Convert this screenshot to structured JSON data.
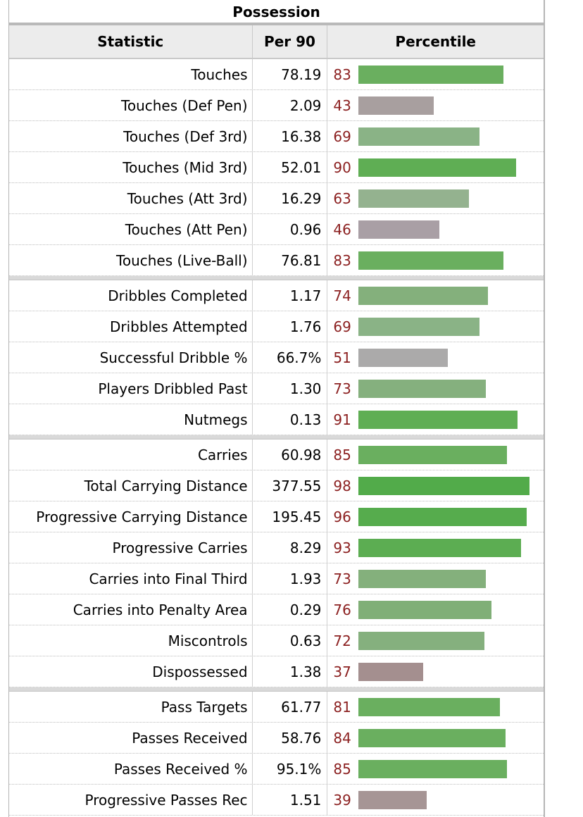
{
  "table": {
    "caption": "Possession",
    "headers": [
      "Statistic",
      "Per 90",
      "Percentile"
    ],
    "groups": [
      [
        {
          "stat": "Touches",
          "per90": "78.19",
          "pct": 83,
          "color": "#6aaf5f"
        },
        {
          "stat": "Touches (Def Pen)",
          "per90": "2.09",
          "pct": 43,
          "color": "#a89f9f"
        },
        {
          "stat": "Touches (Def 3rd)",
          "per90": "16.38",
          "pct": 69,
          "color": "#8ab386"
        },
        {
          "stat": "Touches (Mid 3rd)",
          "per90": "52.01",
          "pct": 90,
          "color": "#5fae54"
        },
        {
          "stat": "Touches (Att 3rd)",
          "per90": "16.29",
          "pct": 63,
          "color": "#94b28f"
        },
        {
          "stat": "Touches (Att Pen)",
          "per90": "0.96",
          "pct": 46,
          "color": "#a99fa5"
        },
        {
          "stat": "Touches (Live-Ball)",
          "per90": "76.81",
          "pct": 83,
          "color": "#6aaf5f"
        }
      ],
      [
        {
          "stat": "Dribbles Completed",
          "per90": "1.17",
          "pct": 74,
          "color": "#84b07c"
        },
        {
          "stat": "Dribbles Attempted",
          "per90": "1.76",
          "pct": 69,
          "color": "#8ab386"
        },
        {
          "stat": "Successful Dribble %",
          "per90": "66.7%",
          "pct": 51,
          "color": "#abaaaa"
        },
        {
          "stat": "Players Dribbled Past",
          "per90": "1.30",
          "pct": 73,
          "color": "#85b07e"
        },
        {
          "stat": "Nutmegs",
          "per90": "0.13",
          "pct": 91,
          "color": "#5fae54"
        }
      ],
      [
        {
          "stat": "Carries",
          "per90": "60.98",
          "pct": 85,
          "color": "#6aaf5f"
        },
        {
          "stat": "Total Carrying Distance",
          "per90": "377.55",
          "pct": 98,
          "color": "#52ab4a"
        },
        {
          "stat": "Progressive Carrying Distance",
          "per90": "195.45",
          "pct": 96,
          "color": "#56ac4d"
        },
        {
          "stat": "Progressive Carries",
          "per90": "8.29",
          "pct": 93,
          "color": "#5cad52"
        },
        {
          "stat": "Carries into Final Third",
          "per90": "1.93",
          "pct": 73,
          "color": "#84b07c"
        },
        {
          "stat": "Carries into Penalty Area",
          "per90": "0.29",
          "pct": 76,
          "color": "#80af77"
        },
        {
          "stat": "Miscontrols",
          "per90": "0.63",
          "pct": 72,
          "color": "#85b07e"
        },
        {
          "stat": "Dispossessed",
          "per90": "1.38",
          "pct": 37,
          "color": "#a48f8f"
        }
      ],
      [
        {
          "stat": "Pass Targets",
          "per90": "61.77",
          "pct": 81,
          "color": "#6aaf5f"
        },
        {
          "stat": "Passes Received",
          "per90": "58.76",
          "pct": 84,
          "color": "#6aaf5f"
        },
        {
          "stat": "Passes Received %",
          "per90": "95.1%",
          "pct": 85,
          "color": "#6aaf5f"
        },
        {
          "stat": "Progressive Passes Rec",
          "per90": "1.51",
          "pct": 39,
          "color": "#a69595"
        }
      ]
    ]
  }
}
